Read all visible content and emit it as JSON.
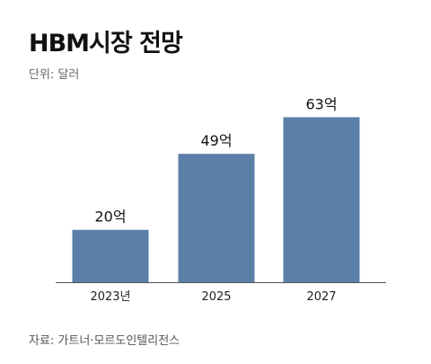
{
  "header": {
    "title": "HBM시장 전망",
    "unit": "단위: 달러"
  },
  "footer": {
    "source": "자료: 가트너·모르도인텔리전스"
  },
  "chart_data": {
    "type": "bar",
    "title": "HBM시장 전망",
    "categories": [
      "2023년",
      "2025",
      "2027"
    ],
    "values": [
      20,
      49,
      63
    ],
    "value_labels": [
      "20억",
      "49억",
      "63억"
    ],
    "ylim": [
      0,
      70
    ],
    "bar_color": "#5b7fa8",
    "axis_color": "#555555",
    "grid": false,
    "legend": "none"
  }
}
